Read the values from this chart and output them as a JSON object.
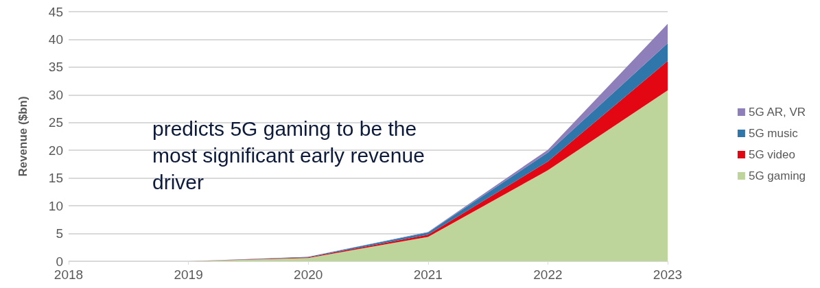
{
  "chart_data": {
    "type": "area",
    "ylabel": "Revenue ($bn)",
    "categories": [
      "2018",
      "2019",
      "2020",
      "2021",
      "2022",
      "2023"
    ],
    "stacked": true,
    "series": [
      {
        "name": "5G gaming",
        "color": "#bdd49b",
        "values": [
          null,
          0,
          0.6,
          4.4,
          16.4,
          30.8
        ]
      },
      {
        "name": "5G video",
        "color": "#e30613",
        "values": [
          null,
          0,
          0.1,
          0.4,
          1.6,
          5.3
        ]
      },
      {
        "name": "5G music",
        "color": "#2f77aa",
        "values": [
          null,
          0,
          0.1,
          0.4,
          1.6,
          3.2
        ]
      },
      {
        "name": "5G AR, VR",
        "color": "#8e7fba",
        "values": [
          null,
          0,
          0,
          0.1,
          0.5,
          3.5
        ]
      }
    ],
    "ylim": [
      0,
      45
    ],
    "yticks": [
      0,
      5,
      10,
      15,
      20,
      25,
      30,
      35,
      40,
      45
    ],
    "grid": "y",
    "legend": "right",
    "marker": "none",
    "annotations": [
      "predicts 5G gaming to be the most significant early revenue driver"
    ]
  }
}
